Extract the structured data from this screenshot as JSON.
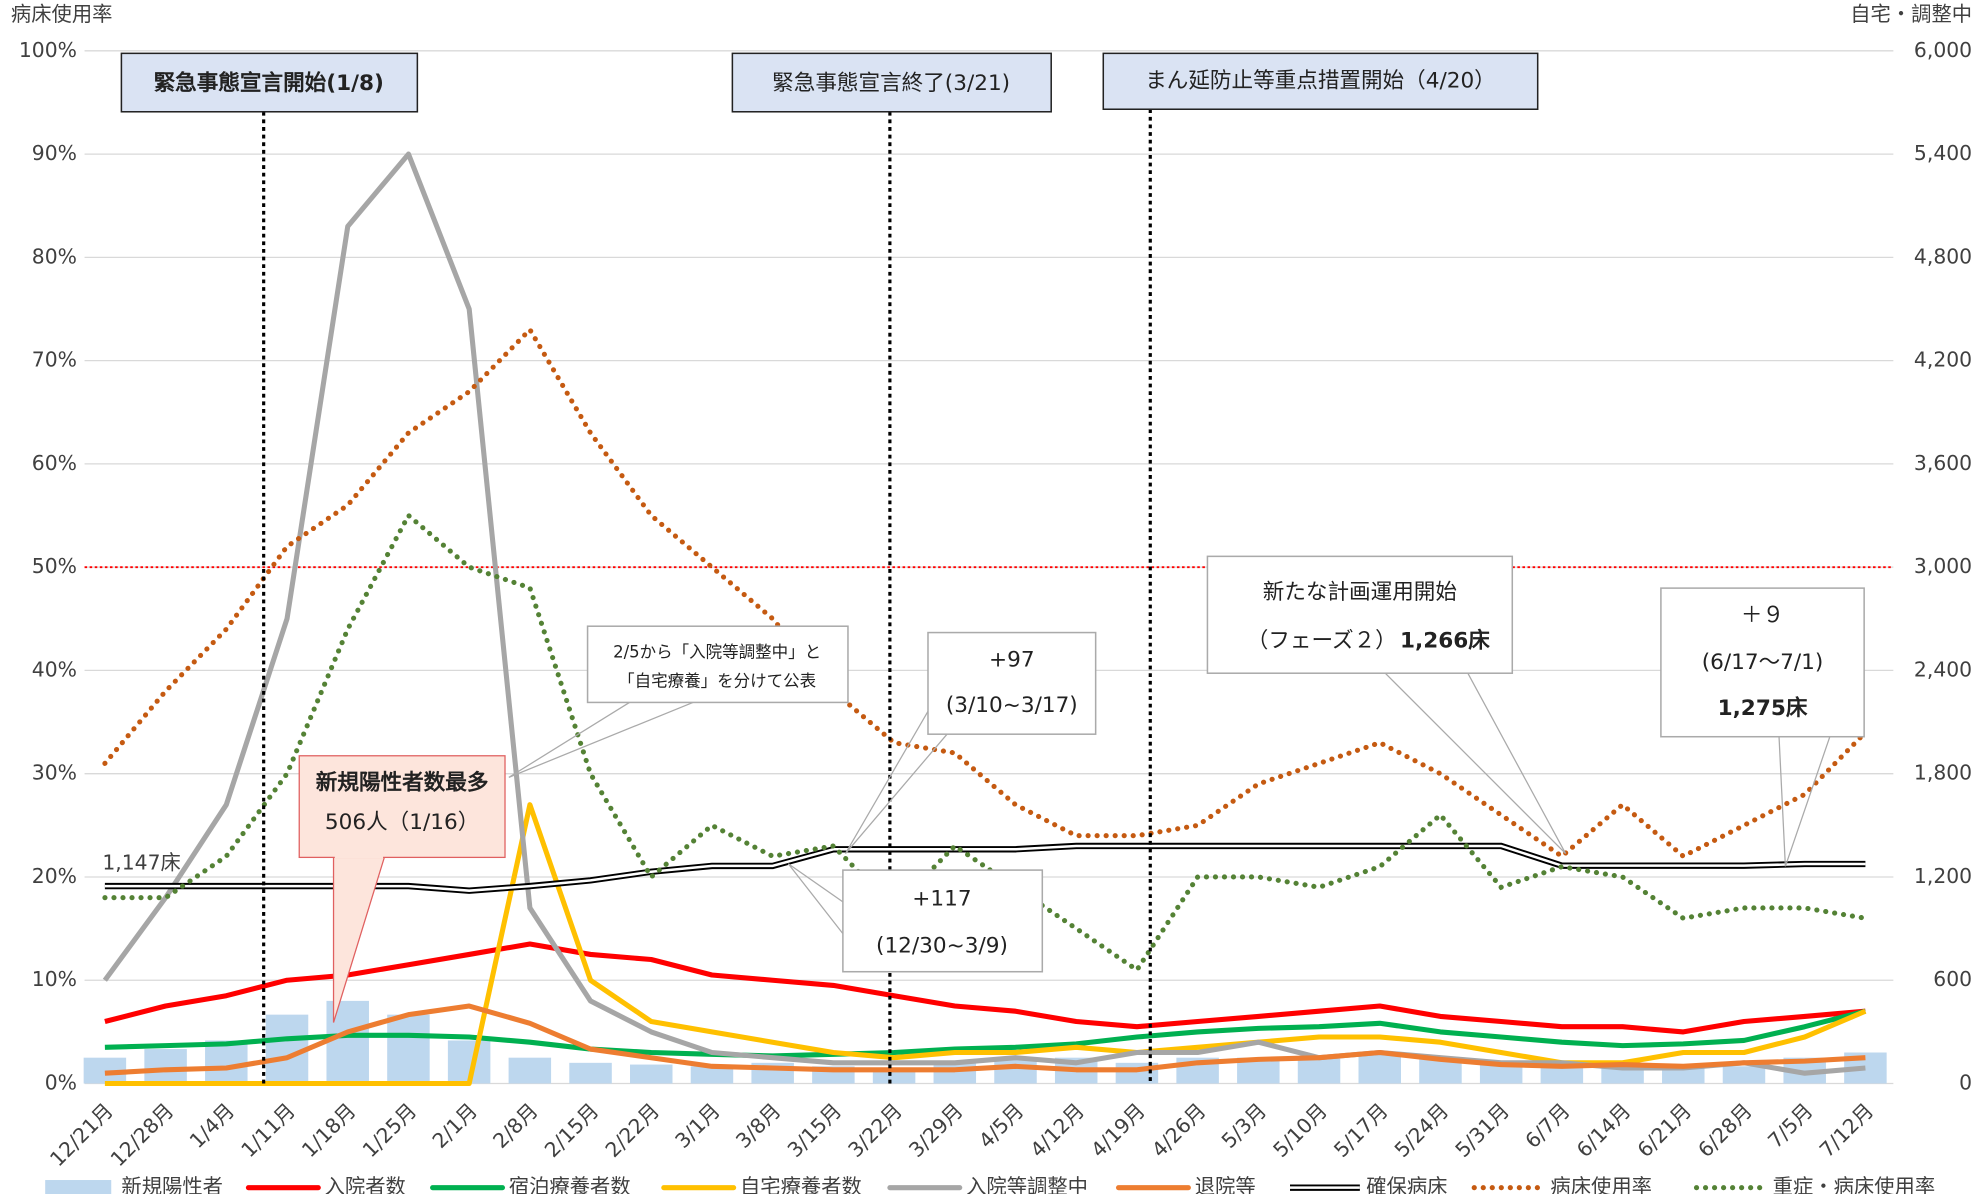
{
  "chart_data": {
    "type": "combo",
    "y_label": "病床使用率",
    "y2_label": "自宅・調整中",
    "categories": [
      "12/21月",
      "12/28月",
      "1/4月",
      "1/11月",
      "1/18月",
      "1/25月",
      "2/1月",
      "2/8月",
      "2/15月",
      "2/22月",
      "3/1月",
      "3/8月",
      "3/15月",
      "3/22月",
      "3/29月",
      "4/5月",
      "4/12月",
      "4/19月",
      "4/26月",
      "5/3月",
      "5/10月",
      "5/17月",
      "5/24月",
      "5/31月",
      "6/7月",
      "6/14月",
      "6/21月",
      "6/28月",
      "7/5月",
      "7/12月"
    ],
    "ylim": [
      0,
      100
    ],
    "yticks": [
      {
        "value": 0,
        "label": "0%"
      },
      {
        "value": 10,
        "label": "10%"
      },
      {
        "value": 20,
        "label": "20%"
      },
      {
        "value": 30,
        "label": "30%"
      },
      {
        "value": 40,
        "label": "40%"
      },
      {
        "value": 50,
        "label": "50%"
      },
      {
        "value": 60,
        "label": "60%"
      },
      {
        "value": 70,
        "label": "70%"
      },
      {
        "value": 80,
        "label": "80%"
      },
      {
        "value": 90,
        "label": "90%"
      },
      {
        "value": 100,
        "label": "100%"
      }
    ],
    "y2lim": [
      0,
      6000
    ],
    "y2ticks": [
      0,
      600,
      {
        "value": 1200,
        "label": "1,200"
      },
      {
        "value": 1800,
        "label": "1,800"
      },
      {
        "value": 2400,
        "label": "2,400"
      },
      {
        "value": 3000,
        "label": "3,000"
      },
      {
        "value": 3600,
        "label": "3,600"
      },
      {
        "value": 4200,
        "label": "4,200"
      },
      {
        "value": 4800,
        "label": "4,800"
      },
      {
        "value": 5400,
        "label": "5,400"
      },
      {
        "value": 6000,
        "label": "6,000"
      }
    ],
    "grid": true,
    "reference_line": {
      "value": 50,
      "color": "#ff0000"
    },
    "series": [
      {
        "name": "新規陽性者",
        "kind": "bar",
        "axis": "y2",
        "color": "#bdd7ee",
        "values": [
          150,
          200,
          250,
          400,
          480,
          400,
          250,
          150,
          120,
          110,
          100,
          120,
          100,
          90,
          120,
          150,
          150,
          120,
          150,
          150,
          160,
          170,
          150,
          120,
          100,
          100,
          90,
          100,
          150,
          180
        ]
      },
      {
        "name": "入院者数",
        "kind": "line",
        "axis": "y2",
        "color": "#ff0000",
        "values": [
          360,
          450,
          510,
          600,
          630,
          690,
          750,
          810,
          750,
          720,
          630,
          600,
          570,
          510,
          450,
          420,
          360,
          330,
          360,
          390,
          420,
          450,
          390,
          360,
          330,
          330,
          300,
          360,
          390,
          420
        ]
      },
      {
        "name": "宿泊療養者数",
        "kind": "line",
        "axis": "y2",
        "color": "#00b050",
        "values": [
          210,
          220,
          230,
          260,
          280,
          280,
          270,
          240,
          200,
          180,
          170,
          160,
          170,
          180,
          200,
          210,
          230,
          270,
          300,
          320,
          330,
          350,
          300,
          270,
          240,
          220,
          230,
          250,
          330,
          420
        ]
      },
      {
        "name": "自宅療養者数",
        "kind": "line",
        "axis": "y2",
        "color": "#ffc000",
        "values": [
          0,
          0,
          0,
          0,
          0,
          0,
          0,
          1620,
          600,
          360,
          300,
          240,
          180,
          150,
          180,
          180,
          210,
          180,
          210,
          240,
          270,
          270,
          240,
          180,
          120,
          120,
          180,
          180,
          270,
          420
        ]
      },
      {
        "name": "入院等調整中",
        "kind": "line",
        "axis": "y2",
        "color": "#a6a6a6",
        "values": [
          600,
          1080,
          1620,
          2700,
          4980,
          5400,
          4500,
          1020,
          480,
          300,
          180,
          150,
          120,
          120,
          120,
          150,
          120,
          180,
          180,
          240,
          150,
          180,
          150,
          120,
          120,
          90,
          90,
          120,
          60,
          90
        ]
      },
      {
        "name": "退院等",
        "kind": "line",
        "axis": "y2",
        "color": "#ed7d31",
        "values": [
          60,
          80,
          90,
          150,
          300,
          400,
          450,
          350,
          200,
          150,
          100,
          90,
          80,
          80,
          80,
          100,
          80,
          80,
          120,
          140,
          150,
          180,
          140,
          110,
          100,
          110,
          100,
          120,
          130,
          150
        ]
      },
      {
        "name": "確保病床",
        "kind": "double",
        "axis": "y2",
        "color": "#000000",
        "values": [
          1147,
          1147,
          1147,
          1147,
          1147,
          1147,
          1120,
          1147,
          1180,
          1230,
          1264,
          1264,
          1361,
          1361,
          1361,
          1361,
          1380,
          1380,
          1380,
          1380,
          1380,
          1380,
          1380,
          1380,
          1266,
          1266,
          1266,
          1266,
          1275,
          1275
        ]
      },
      {
        "name": "病床使用率",
        "kind": "dotted",
        "axis": "y",
        "color": "#c55a11",
        "values": [
          31,
          38,
          44,
          52,
          56,
          63,
          67,
          73,
          63,
          55,
          50,
          45,
          38,
          33,
          32,
          27,
          24,
          24,
          25,
          29,
          31,
          33,
          30,
          26,
          22,
          27,
          22,
          25,
          28,
          34
        ]
      },
      {
        "name": "重症・病床使用率",
        "kind": "dotted",
        "axis": "y",
        "color": "#548235",
        "values": [
          18,
          18,
          22,
          30,
          44,
          55,
          50,
          48,
          30,
          20,
          25,
          22,
          23,
          17,
          23,
          19,
          15,
          11,
          20,
          20,
          19,
          21,
          26,
          19,
          21,
          20,
          16,
          17,
          17,
          16
        ]
      }
    ],
    "annotations": {
      "start": "緊急事態宣言開始(1/8)",
      "end": "緊急事態宣言終了(3/21)",
      "manen": "まん延防止等重点措置開始（4/20）",
      "beds_start": "1,147床",
      "max_title": "新規陽性者数最多",
      "max_value": "506人（1/16）",
      "split_1": "2/5から「入院等調整中」と",
      "split_2": "「自宅療養」を分けて公表",
      "add97": "+97",
      "add97_range": "(3/10~3/17)",
      "add117": "+117",
      "add117_range": "(12/30~3/9)",
      "plan_1": "新たな計画運用開始",
      "plan_2": "（フェーズ２）",
      "plan_beds": "1,266床",
      "add9": "＋９",
      "add9_range": "(6/17～7/1)",
      "add9_beds": "1,275床"
    }
  }
}
